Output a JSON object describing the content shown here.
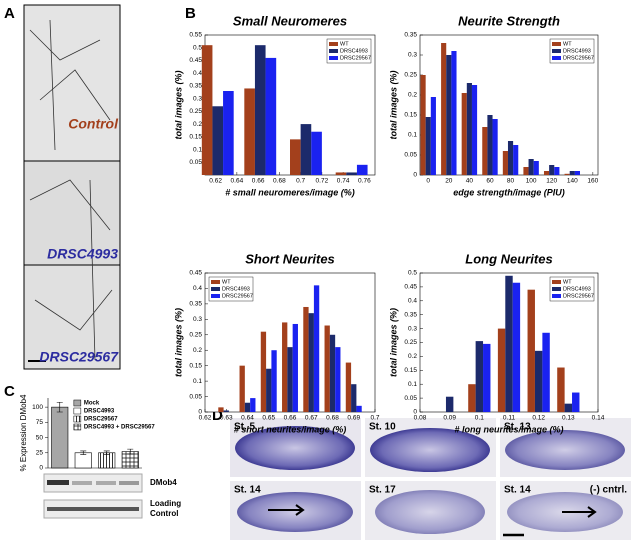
{
  "panel_labels": [
    "A",
    "B",
    "C",
    "D"
  ],
  "panel_a": {
    "labels": [
      "Control",
      "DRSC4993",
      "DRSC29567"
    ]
  },
  "chart_data": [
    {
      "type": "bar",
      "title": "Small Neuromeres",
      "xlabel": "# small neuromeres/image (%)",
      "ylabel": "total images (%)",
      "x": [
        0.622,
        0.662,
        0.705,
        0.748
      ],
      "series": [
        {
          "name": "WT",
          "color": "#a3401c",
          "values": [
            0.51,
            0.34,
            0.14,
            0.01
          ]
        },
        {
          "name": "DRSC4993",
          "color": "#1c2a6b",
          "values": [
            0.27,
            0.51,
            0.2,
            0.01
          ]
        },
        {
          "name": "DRSC29567",
          "color": "#1a22f0",
          "values": [
            0.33,
            0.46,
            0.17,
            0.04
          ]
        }
      ],
      "xlim": [
        0.61,
        0.77
      ],
      "xticks": [
        0.62,
        0.64,
        0.66,
        0.68,
        0.7,
        0.72,
        0.74,
        0.76
      ],
      "ylim": [
        0,
        0.55
      ],
      "yticks": [
        0.05,
        0.1,
        0.15,
        0.2,
        0.25,
        0.3,
        0.35,
        0.4,
        0.45,
        0.5,
        0.55
      ],
      "legend": "upper right"
    },
    {
      "type": "bar",
      "title": "Neurite Strength",
      "xlabel": "edge strength/image (PIU)",
      "ylabel": "total images (%)",
      "x": [
        0,
        20,
        40,
        60,
        80,
        100,
        120,
        140
      ],
      "series": [
        {
          "name": "WT",
          "color": "#a3401c",
          "values": [
            0.25,
            0.33,
            0.205,
            0.12,
            0.06,
            0.02,
            0.01,
            0.003
          ]
        },
        {
          "name": "DRSC4993",
          "color": "#1c2a6b",
          "values": [
            0.145,
            0.3,
            0.23,
            0.15,
            0.085,
            0.04,
            0.025,
            0.01
          ]
        },
        {
          "name": "DRSC29567",
          "color": "#1a22f0",
          "values": [
            0.195,
            0.31,
            0.225,
            0.14,
            0.075,
            0.035,
            0.02,
            0.01
          ]
        }
      ],
      "xlim": [
        -8,
        165
      ],
      "xticks": [
        0,
        20,
        40,
        60,
        80,
        100,
        120,
        140,
        160
      ],
      "ylim": [
        0,
        0.35
      ],
      "yticks": [
        0,
        0.05,
        0.1,
        0.15,
        0.2,
        0.25,
        0.3,
        0.35
      ],
      "legend": "upper right"
    },
    {
      "type": "bar",
      "title": "Short Neurites",
      "xlabel": "# short neurites/image (%)",
      "ylabel": "total images (%)",
      "x": [
        0.63,
        0.64,
        0.65,
        0.66,
        0.67,
        0.68,
        0.69
      ],
      "series": [
        {
          "name": "WT",
          "color": "#a3401c",
          "values": [
            0.015,
            0.15,
            0.26,
            0.29,
            0.34,
            0.28,
            0.16
          ]
        },
        {
          "name": "DRSC4993",
          "color": "#1c2a6b",
          "values": [
            0.005,
            0.03,
            0.14,
            0.21,
            0.32,
            0.25,
            0.09
          ]
        },
        {
          "name": "DRSC29567",
          "color": "#1a22f0",
          "values": [
            0,
            0.045,
            0.2,
            0.285,
            0.41,
            0.21,
            0.02
          ]
        }
      ],
      "xlim": [
        0.62,
        0.7
      ],
      "xticks": [
        0.62,
        0.63,
        0.64,
        0.65,
        0.66,
        0.67,
        0.68,
        0.69,
        0.7
      ],
      "ylim": [
        0,
        0.45
      ],
      "yticks": [
        0,
        0.05,
        0.1,
        0.15,
        0.2,
        0.25,
        0.3,
        0.35,
        0.4,
        0.45
      ],
      "legend": "upper left"
    },
    {
      "type": "bar",
      "title": "Long Neurites",
      "xlabel": "# long neurites/image (%)",
      "ylabel": "total images (%)",
      "x": [
        0.09,
        0.1,
        0.11,
        0.12,
        0.13
      ],
      "series": [
        {
          "name": "WT",
          "color": "#a3401c",
          "values": [
            0,
            0.1,
            0.3,
            0.44,
            0.16
          ]
        },
        {
          "name": "DRSC4993",
          "color": "#1c2a6b",
          "values": [
            0.055,
            0.255,
            0.49,
            0.22,
            0.03
          ]
        },
        {
          "name": "DRSC29567",
          "color": "#1a22f0",
          "values": [
            0,
            0.245,
            0.465,
            0.285,
            0.07
          ]
        }
      ],
      "xlim": [
        0.08,
        0.14
      ],
      "xticks": [
        0.08,
        0.09,
        0.1,
        0.11,
        0.12,
        0.13,
        0.14
      ],
      "ylim": [
        0,
        0.5
      ],
      "yticks": [
        0,
        0.05,
        0.1,
        0.15,
        0.2,
        0.25,
        0.3,
        0.35,
        0.4,
        0.45,
        0.5
      ],
      "legend": "upper right"
    },
    {
      "type": "errorbar",
      "ylabel": "% Expression DMob4",
      "categories": [
        "Mock",
        "DRSC4993",
        "DRSC29567",
        "DRSC4993 + DRSC29567"
      ],
      "values": [
        100,
        25,
        25,
        27
      ],
      "errors": [
        8,
        3,
        3,
        4
      ],
      "colors": [
        "#a6a6a6",
        "#ffffff",
        "#ffffff",
        "#ffffff"
      ],
      "hatch": [
        null,
        null,
        "|",
        "+"
      ],
      "ylim": [
        0,
        115
      ],
      "yticks": [
        0,
        25,
        50,
        75,
        100
      ],
      "legend": "upper right"
    }
  ],
  "panel_c_blot": {
    "dmob4": "DMob4",
    "loading_control": [
      "Loading",
      "Control"
    ]
  },
  "panel_d": {
    "stages": [
      "St. 5",
      "St. 10",
      "St. 13",
      "St. 14",
      "St. 17",
      "St. 14"
    ],
    "control": "(-) cntrl."
  }
}
